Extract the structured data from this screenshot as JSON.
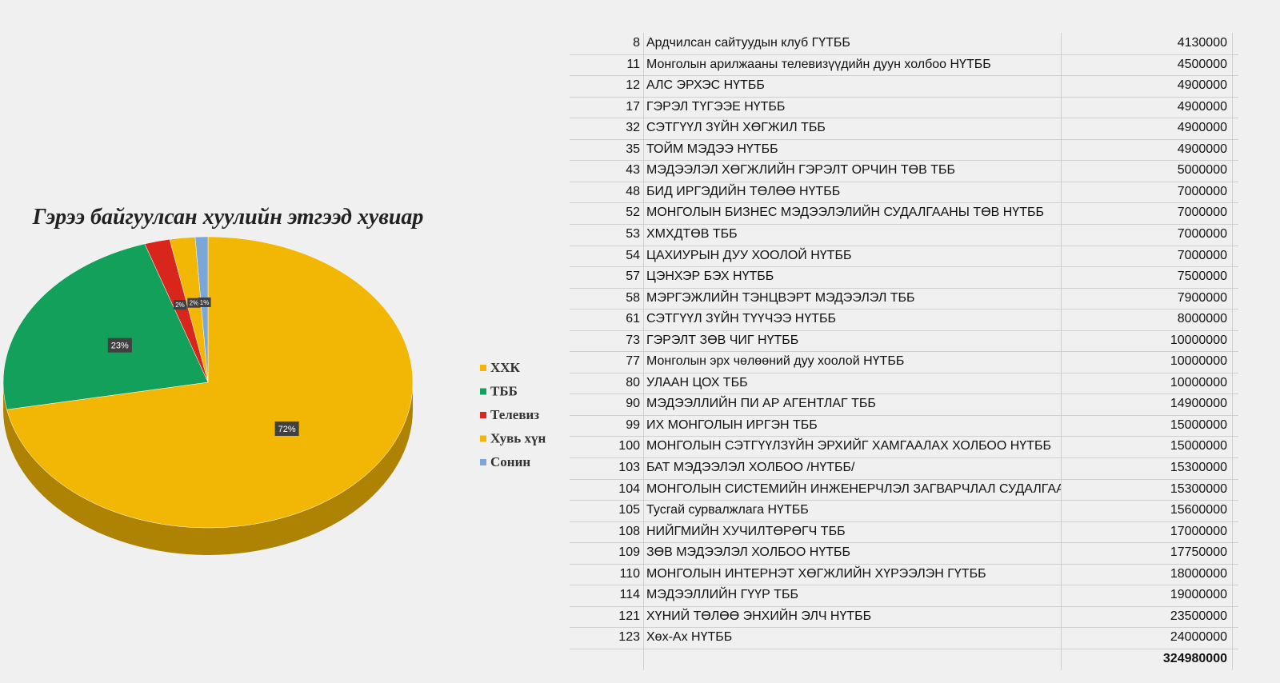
{
  "chart_data": {
    "type": "pie",
    "title": "Гэрээ байгуулсан хуулийн этгээд хувиар",
    "categories": [
      "ХХК",
      "ТББ",
      "Телевиз",
      "Хувь хүн",
      "Сонин"
    ],
    "values": [
      72,
      23,
      2,
      2,
      1
    ],
    "value_labels": [
      "72%",
      "23%",
      "2%",
      "2%",
      "1%"
    ],
    "colors": [
      "#f2b705",
      "#12a05a",
      "#d8261c",
      "#f2b705",
      "#7aa7d8"
    ]
  },
  "table": {
    "rows": [
      [
        8,
        "Ардчилсан сайтуудын клуб ГҮТББ",
        4130000
      ],
      [
        11,
        "Монголын арилжааны телевизүүдийн дуун холбоо НҮТББ",
        4500000
      ],
      [
        12,
        "АЛС ЭРХЭС НҮТББ",
        4900000
      ],
      [
        17,
        "ГЭРЭЛ ТҮГЭЭЕ НҮТББ",
        4900000
      ],
      [
        32,
        "СЭТГҮҮЛ ЗҮЙН ХӨГЖИЛ ТББ",
        4900000
      ],
      [
        35,
        "ТОЙМ МЭДЭЭ НҮТББ",
        4900000
      ],
      [
        43,
        "МЭДЭЭЛЭЛ ХӨГЖЛИЙН ГЭРЭЛТ ОРЧИН ТӨВ ТББ",
        5000000
      ],
      [
        48,
        "БИД ИРГЭДИЙН ТӨЛӨӨ НҮТББ",
        7000000
      ],
      [
        52,
        "МОНГОЛЫН БИЗНЕС МЭДЭЭЛЭЛИЙН СУДАЛГААНЫ ТӨВ НҮТББ",
        7000000
      ],
      [
        53,
        "ХМХДТӨВ ТББ",
        7000000
      ],
      [
        54,
        "ЦАХИУРЫН ДУУ ХООЛОЙ НҮТББ",
        7000000
      ],
      [
        57,
        "ЦЭНХЭР БЭХ НҮТББ",
        7500000
      ],
      [
        58,
        "МЭРГЭЖЛИЙН ТЭНЦВЭРТ МЭДЭЭЛЭЛ ТББ",
        7900000
      ],
      [
        61,
        "СЭТГҮҮЛ ЗҮЙН ТҮҮЧЭЭ НҮТББ",
        8000000
      ],
      [
        73,
        "ГЭРЭЛТ ЗӨВ ЧИГ НҮТББ",
        10000000
      ],
      [
        77,
        "Монголын эрх чөлөөний дуу хоолой НҮТББ",
        10000000
      ],
      [
        80,
        "УЛААН ЦОХ ТББ",
        10000000
      ],
      [
        90,
        "МЭДЭЭЛЛИЙН ПИ АР АГЕНТЛАГ ТББ",
        14900000
      ],
      [
        99,
        "ИХ МОНГОЛЫН ИРГЭН ТББ",
        15000000
      ],
      [
        100,
        "МОНГОЛЫН СЭТГҮҮЛЗҮЙН ЭРХИЙГ ХАМГААЛАХ ХОЛБОО НҮТББ",
        15000000
      ],
      [
        103,
        "БАТ МЭДЭЭЛЭЛ ХОЛБОО /НҮТББ/",
        15300000
      ],
      [
        104,
        "МОНГОЛЫН СИСТЕМИЙН ИНЖЕНЕРЧЛЭЛ ЗАГВАРЧЛАЛ СУДАЛГАА",
        15300000
      ],
      [
        105,
        "Тусгай сурвалжлага НҮТББ",
        15600000
      ],
      [
        108,
        "НИЙГМИЙН ХУЧИЛТӨРӨГЧ ТББ",
        17000000
      ],
      [
        109,
        "ЗӨВ МЭДЭЭЛЭЛ ХОЛБОО НҮТББ",
        17750000
      ],
      [
        110,
        "МОНГОЛЫН ИНТЕРНЭТ ХӨГЖЛИЙН ХҮРЭЭЛЭН ГҮТББ",
        18000000
      ],
      [
        114,
        "МЭДЭЭЛЛИЙН ГҮҮР ТББ",
        19000000
      ],
      [
        121,
        "ХҮНИЙ ТӨЛӨӨ ЭНХИЙН ЭЛЧ НҮТББ",
        23500000
      ],
      [
        123,
        "Хөх-Ах НҮТББ",
        24000000
      ]
    ],
    "total": 324980000
  }
}
